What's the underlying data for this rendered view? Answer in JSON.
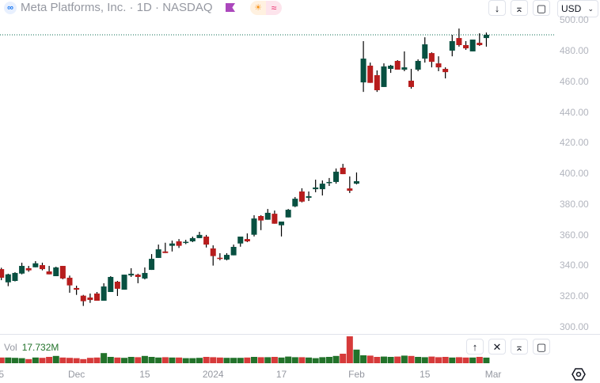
{
  "header": {
    "logo": "meta-logo",
    "title": "Meta Platforms, Inc. · 1D · NASDAQ",
    "badge_icons": [
      "sun-icon",
      "waves-icon"
    ],
    "currency": "USD"
  },
  "toolbar_icons": [
    "arrow-down-icon",
    "collapse-icon",
    "fullscreen-icon"
  ],
  "volume_pane": {
    "label": "Vol",
    "value": "17.732M",
    "buttons": [
      "arrow-up-icon",
      "close-icon",
      "collapse-icon",
      "fullscreen-icon"
    ]
  },
  "colors": {
    "up": "#085041",
    "down": "#b71d1d",
    "vol_up": "#22722a",
    "vol_down": "#d63a3a",
    "last_price_line": "#0a6b52"
  },
  "chart_data": {
    "type": "candlestick",
    "symbol": "Meta Platforms, Inc.",
    "interval": "1D",
    "ylim": [
      300,
      500
    ],
    "y_ticks": [
      "300.00",
      "320.00",
      "340.00",
      "360.00",
      "380.00",
      "400.00",
      "420.00",
      "440.00",
      "460.00",
      "480.00",
      "500.00"
    ],
    "last_price": 490.3,
    "x_ticks": [
      {
        "label": "5",
        "bar": 0
      },
      {
        "label": "Dec",
        "bar": 11
      },
      {
        "label": "15",
        "bar": 21
      },
      {
        "label": "2024",
        "bar": 31
      },
      {
        "label": "17",
        "bar": 41
      },
      {
        "label": "Feb",
        "bar": 52
      },
      {
        "label": "15",
        "bar": 62
      },
      {
        "label": "Mar",
        "bar": 72
      }
    ],
    "ohlc": [
      [
        337.6,
        338.5,
        330.4,
        332.0
      ],
      [
        329.0,
        334.6,
        326.5,
        334.2
      ],
      [
        329.9,
        335.6,
        329.6,
        335.1
      ],
      [
        334.7,
        341.8,
        334.2,
        339.7
      ],
      [
        338.2,
        339.7,
        335.9,
        336.8
      ],
      [
        338.8,
        342.8,
        338.8,
        341.4
      ],
      [
        340.2,
        341.8,
        336.8,
        337.6
      ],
      [
        336.1,
        339.7,
        334.2,
        334.2
      ],
      [
        333.0,
        339.2,
        333.0,
        338.7
      ],
      [
        339.7,
        339.7,
        331.0,
        331.5
      ],
      [
        332.0,
        333.4,
        322.2,
        327.0
      ],
      [
        325.3,
        326.8,
        320.8,
        324.2
      ],
      [
        320.3,
        320.8,
        313.6,
        316.7
      ],
      [
        319.1,
        321.7,
        315.6,
        317.5
      ],
      [
        321.7,
        322.7,
        317.0,
        317.0
      ],
      [
        317.0,
        328.4,
        317.0,
        326.3
      ],
      [
        322.7,
        333.0,
        322.7,
        332.5
      ],
      [
        329.4,
        329.9,
        320.1,
        324.8
      ],
      [
        324.2,
        334.0,
        324.2,
        334.0
      ],
      [
        333.5,
        338.2,
        332.5,
        334.6
      ],
      [
        334.0,
        334.6,
        328.4,
        332.5
      ],
      [
        331.5,
        338.7,
        330.9,
        335.1
      ],
      [
        337.1,
        347.4,
        337.1,
        344.3
      ],
      [
        344.9,
        353.6,
        344.9,
        350.5
      ],
      [
        349.1,
        354.8,
        348.1,
        348.1
      ],
      [
        352.8,
        356.2,
        349.1,
        354.3
      ],
      [
        355.7,
        357.2,
        351.4,
        352.8
      ],
      [
        355.1,
        356.7,
        353.9,
        355.4
      ],
      [
        355.7,
        358.8,
        355.2,
        357.8
      ],
      [
        357.8,
        361.9,
        357.8,
        359.9
      ],
      [
        358.8,
        359.9,
        351.7,
        353.6
      ],
      [
        351.1,
        353.1,
        339.9,
        346.1
      ],
      [
        345.0,
        348.0,
        343.4,
        344.3
      ],
      [
        343.8,
        348.0,
        343.3,
        346.9
      ],
      [
        346.6,
        353.6,
        346.6,
        352.1
      ],
      [
        354.3,
        358.8,
        352.2,
        358.8
      ],
      [
        357.2,
        360.9,
        355.2,
        355.7
      ],
      [
        360.0,
        372.7,
        358.9,
        370.6
      ],
      [
        372.2,
        372.7,
        363.0,
        369.3
      ],
      [
        369.8,
        376.8,
        369.8,
        374.3
      ],
      [
        373.7,
        375.8,
        367.2,
        367.2
      ],
      [
        366.2,
        368.6,
        358.9,
        368.6
      ],
      [
        371.3,
        376.8,
        371.3,
        376.3
      ],
      [
        378.5,
        384.6,
        378.0,
        383.5
      ],
      [
        388.2,
        390.3,
        381.1,
        381.6
      ],
      [
        384.1,
        388.2,
        382.0,
        385.1
      ],
      [
        389.7,
        395.9,
        387.7,
        390.8
      ],
      [
        389.7,
        395.4,
        385.6,
        393.3
      ],
      [
        393.9,
        397.0,
        391.8,
        394.4
      ],
      [
        394.4,
        403.2,
        393.3,
        401.1
      ],
      [
        403.7,
        406.2,
        399.5,
        399.5
      ],
      [
        390.2,
        398.0,
        387.2,
        388.7
      ],
      [
        393.3,
        400.6,
        392.8,
        394.9
      ],
      [
        459.3,
        486.2,
        453.1,
        474.8
      ],
      [
        470.2,
        472.2,
        459.0,
        459.0
      ],
      [
        464.0,
        467.1,
        453.1,
        454.2
      ],
      [
        456.3,
        471.7,
        456.3,
        469.7
      ],
      [
        468.1,
        470.7,
        465.5,
        470.2
      ],
      [
        473.3,
        473.8,
        467.6,
        467.6
      ],
      [
        467.6,
        479.5,
        466.6,
        469.1
      ],
      [
        460.4,
        468.1,
        455.2,
        456.3
      ],
      [
        467.6,
        474.3,
        466.6,
        473.3
      ],
      [
        474.8,
        488.7,
        472.2,
        484.1
      ],
      [
        478.4,
        478.9,
        469.1,
        472.7
      ],
      [
        471.7,
        476.3,
        466.6,
        469.1
      ],
      [
        468.1,
        469.1,
        461.9,
        466.0
      ],
      [
        480.0,
        490.3,
        476.3,
        486.2
      ],
      [
        488.2,
        494.4,
        482.6,
        483.6
      ],
      [
        483.6,
        486.2,
        480.5,
        481.5
      ],
      [
        479.5,
        487.2,
        479.5,
        487.2
      ],
      [
        485.1,
        491.3,
        483.1,
        483.6
      ],
      [
        488.2,
        491.8,
        482.6,
        490.3
      ]
    ],
    "volume_millions": [
      18,
      18,
      17,
      16,
      13,
      18,
      17,
      20,
      23,
      18,
      17,
      16,
      13,
      17,
      18,
      32,
      20,
      18,
      17,
      20,
      19,
      23,
      20,
      18,
      19,
      18,
      18,
      16,
      16,
      17,
      20,
      19,
      18,
      17,
      17,
      17,
      18,
      20,
      19,
      19,
      20,
      18,
      21,
      19,
      19,
      18,
      16,
      19,
      20,
      23,
      30,
      85,
      43,
      25,
      24,
      20,
      21,
      20,
      21,
      24,
      23,
      20,
      19,
      21,
      19,
      20,
      18,
      19,
      18,
      18,
      20,
      17.732
    ]
  }
}
